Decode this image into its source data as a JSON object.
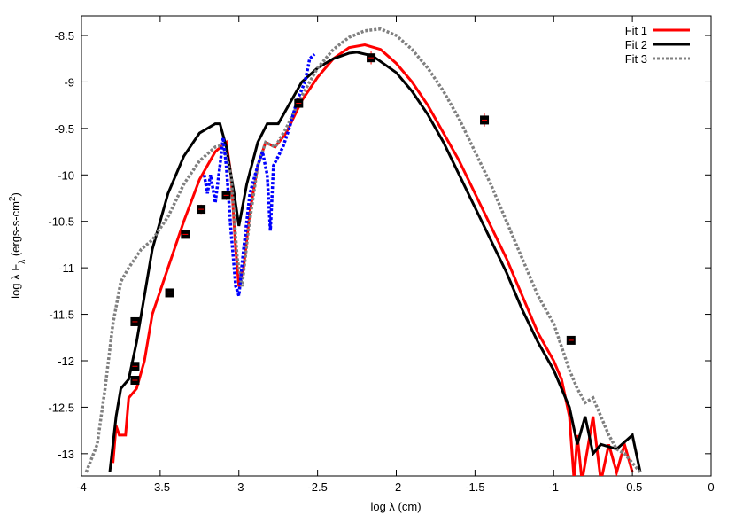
{
  "chart_data": {
    "type": "line",
    "xlabel": "log λ (cm)",
    "ylabel": [
      "log λ F",
      "λ",
      " (ergs-s-cm",
      "2",
      ")"
    ],
    "xlim": [
      -4,
      0
    ],
    "ylim": [
      -13.24,
      -8.29
    ],
    "xticks": [
      -4,
      -3.5,
      -3,
      -2.5,
      -2,
      -1.5,
      -1,
      -0.5,
      0
    ],
    "yticks": [
      -8.5,
      -9,
      -9.5,
      -10,
      -10.5,
      -11,
      -11.5,
      -12,
      -12.5,
      -13
    ],
    "legend": "top right",
    "series": [
      {
        "name": "Fit 1",
        "color": "#ff0000",
        "style": "solid",
        "x": [
          -3.8,
          -3.78,
          -3.76,
          -3.72,
          -3.7,
          -3.65,
          -3.6,
          -3.55,
          -3.45,
          -3.35,
          -3.25,
          -3.15,
          -3.08,
          -3.05,
          -3.02,
          -3.0,
          -2.97,
          -2.93,
          -2.88,
          -2.83,
          -2.77,
          -2.7,
          -2.6,
          -2.5,
          -2.4,
          -2.3,
          -2.2,
          -2.1,
          -2.0,
          -1.9,
          -1.8,
          -1.7,
          -1.6,
          -1.5,
          -1.4,
          -1.3,
          -1.2,
          -1.1,
          -1.0,
          -0.95,
          -0.9,
          -0.87,
          -0.85,
          -0.82,
          -0.75,
          -0.7,
          -0.65,
          -0.6,
          -0.55,
          -0.5
        ],
        "values": [
          -13.1,
          -12.7,
          -12.8,
          -12.8,
          -12.4,
          -12.3,
          -12.0,
          -11.5,
          -11.0,
          -10.5,
          -10.05,
          -9.75,
          -9.65,
          -10.0,
          -10.8,
          -11.2,
          -11.0,
          -10.4,
          -9.9,
          -9.65,
          -9.7,
          -9.55,
          -9.2,
          -8.95,
          -8.75,
          -8.63,
          -8.6,
          -8.65,
          -8.8,
          -9.0,
          -9.25,
          -9.55,
          -9.85,
          -10.2,
          -10.55,
          -10.9,
          -11.3,
          -11.7,
          -12.0,
          -12.2,
          -12.6,
          -13.3,
          -12.8,
          -13.3,
          -12.6,
          -13.3,
          -12.9,
          -13.2,
          -12.9,
          -13.2
        ]
      },
      {
        "name": "Fit 2",
        "color": "#000000",
        "style": "solid",
        "x": [
          -3.82,
          -3.78,
          -3.75,
          -3.7,
          -3.65,
          -3.6,
          -3.55,
          -3.45,
          -3.35,
          -3.25,
          -3.15,
          -3.12,
          -3.08,
          -3.03,
          -3.0,
          -2.95,
          -2.88,
          -2.82,
          -2.75,
          -2.7,
          -2.6,
          -2.5,
          -2.4,
          -2.3,
          -2.25,
          -2.15,
          -2.0,
          -1.9,
          -1.8,
          -1.7,
          -1.6,
          -1.5,
          -1.4,
          -1.3,
          -1.2,
          -1.1,
          -1.0,
          -0.95,
          -0.9,
          -0.85,
          -0.8,
          -0.75,
          -0.7,
          -0.6,
          -0.5,
          -0.45
        ],
        "values": [
          -13.2,
          -12.6,
          -12.3,
          -12.2,
          -11.8,
          -11.3,
          -10.8,
          -10.2,
          -9.8,
          -9.55,
          -9.45,
          -9.45,
          -9.7,
          -10.2,
          -10.55,
          -10.1,
          -9.65,
          -9.45,
          -9.45,
          -9.3,
          -9.0,
          -8.85,
          -8.75,
          -8.69,
          -8.68,
          -8.72,
          -8.9,
          -9.1,
          -9.35,
          -9.65,
          -10.0,
          -10.35,
          -10.7,
          -11.05,
          -11.45,
          -11.8,
          -12.1,
          -12.3,
          -12.5,
          -12.9,
          -12.6,
          -13.0,
          -12.9,
          -12.95,
          -12.8,
          -13.2
        ]
      },
      {
        "name": "Fit 3",
        "color": "#808080",
        "style": "dotted",
        "x": [
          -3.97,
          -3.9,
          -3.85,
          -3.8,
          -3.75,
          -3.7,
          -3.62,
          -3.55,
          -3.45,
          -3.35,
          -3.25,
          -3.15,
          -3.1,
          -3.05,
          -3.01,
          -2.98,
          -2.94,
          -2.88,
          -2.83,
          -2.77,
          -2.7,
          -2.6,
          -2.5,
          -2.4,
          -2.3,
          -2.2,
          -2.1,
          -2.0,
          -1.9,
          -1.8,
          -1.7,
          -1.6,
          -1.5,
          -1.4,
          -1.3,
          -1.2,
          -1.1,
          -1.0,
          -0.95,
          -0.9,
          -0.85,
          -0.8,
          -0.75,
          -0.7,
          -0.65,
          -0.6,
          -0.55,
          -0.5,
          -0.45
        ],
        "values": [
          -13.2,
          -12.9,
          -12.3,
          -11.6,
          -11.15,
          -11.0,
          -10.8,
          -10.7,
          -10.45,
          -10.1,
          -9.85,
          -9.7,
          -9.68,
          -10.0,
          -10.9,
          -11.2,
          -10.6,
          -9.9,
          -9.65,
          -9.7,
          -9.5,
          -9.15,
          -8.85,
          -8.65,
          -8.52,
          -8.45,
          -8.43,
          -8.5,
          -8.65,
          -8.85,
          -9.1,
          -9.4,
          -9.75,
          -10.1,
          -10.5,
          -10.9,
          -11.3,
          -11.6,
          -11.85,
          -12.1,
          -12.3,
          -12.45,
          -12.4,
          -12.6,
          -12.8,
          -12.95,
          -13.0,
          -13.1,
          -13.2
        ]
      },
      {
        "color": "#0000ff",
        "style": "dotted",
        "x": [
          -3.22,
          -3.2,
          -3.18,
          -3.15,
          -3.12,
          -3.1,
          -3.08,
          -3.05,
          -3.02,
          -3.0,
          -2.97,
          -2.93,
          -2.88,
          -2.85,
          -2.82,
          -2.8,
          -2.78,
          -2.75,
          -2.72,
          -2.68,
          -2.63,
          -2.58,
          -2.55,
          -2.52
        ],
        "values": [
          -10.0,
          -10.2,
          -10.0,
          -10.3,
          -9.9,
          -9.6,
          -9.9,
          -10.6,
          -11.2,
          -11.3,
          -10.8,
          -10.2,
          -9.9,
          -9.75,
          -10.0,
          -10.6,
          -9.9,
          -9.8,
          -9.7,
          -9.5,
          -9.2,
          -9.0,
          -8.75,
          -8.7
        ]
      }
    ],
    "points": {
      "color": "#000000",
      "error_color": "#ff0000",
      "x": [
        -3.66,
        -3.66,
        -3.66,
        -3.44,
        -3.34,
        -3.24,
        -3.08,
        -2.62,
        -2.16,
        -1.44,
        -0.89
      ],
      "values": [
        -11.58,
        -12.06,
        -12.21,
        -11.27,
        -10.64,
        -10.37,
        -10.22,
        -9.23,
        -8.74,
        -9.41,
        -11.78
      ],
      "errors": [
        0.05,
        0.05,
        0.05,
        0.04,
        0.04,
        0.05,
        0.05,
        0.06,
        0.07,
        0.07,
        0.04
      ]
    }
  }
}
